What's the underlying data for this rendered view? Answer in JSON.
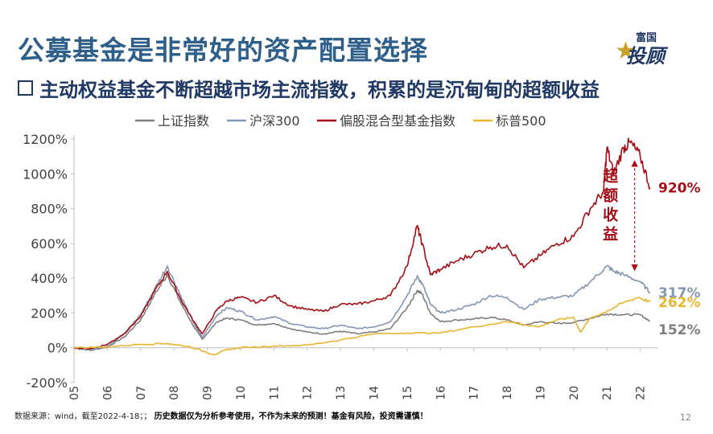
{
  "title": "公募基金是非常好的资产配置选择",
  "subtitle": "主动权益基金不断超越市场主流指数，积累的是沉甸甸的超额收益",
  "logo": {
    "top": "富国",
    "bottom": "投顾"
  },
  "footer": {
    "source": "数据来源：wind，截至2022-4-18；；",
    "disclaimer": "历史数据仅为分析参考使用，不作为未来的预测！基金有风险，投资需谨慎！"
  },
  "page_number": "12",
  "chart_data": {
    "type": "line",
    "title": "",
    "xlabel": "",
    "ylabel": "",
    "ylim": [
      -200,
      1200
    ],
    "xlim": [
      2005,
      2022.3
    ],
    "yticks": [
      -200,
      0,
      200,
      400,
      600,
      800,
      1000,
      1200
    ],
    "ytick_labels": [
      "-200%",
      "0%",
      "200%",
      "400%",
      "600%",
      "800%",
      "1000%",
      "1200%"
    ],
    "xticks": [
      2005,
      2006,
      2007,
      2008,
      2009,
      2010,
      2011,
      2012,
      2013,
      2014,
      2015,
      2016,
      2017,
      2018,
      2019,
      2020,
      2021,
      2022
    ],
    "xtick_labels": [
      "2005",
      "2006",
      "2007",
      "2008",
      "2009",
      "2010",
      "2011",
      "2012",
      "2013",
      "2014",
      "2015",
      "2016",
      "2017",
      "2018",
      "2019",
      "2020",
      "2021",
      "2022"
    ],
    "grid": false,
    "legend_position": "top",
    "series": [
      {
        "name": "上证指数",
        "color": "#7f7f7f",
        "x": [
          2005,
          2005.5,
          2006,
          2006.5,
          2007,
          2007.4,
          2007.8,
          2008.2,
          2008.6,
          2008.85,
          2009.3,
          2009.6,
          2010,
          2010.5,
          2011,
          2011.5,
          2012,
          2012.5,
          2013,
          2013.5,
          2014,
          2014.5,
          2015,
          2015.3,
          2015.45,
          2015.7,
          2016,
          2016.5,
          2017,
          2017.5,
          2018,
          2018.5,
          2019,
          2019.5,
          2020,
          2020.5,
          2021,
          2021.5,
          2022,
          2022.3
        ],
        "y": [
          0,
          -15,
          5,
          60,
          160,
          300,
          420,
          260,
          120,
          50,
          150,
          170,
          160,
          130,
          140,
          110,
          90,
          80,
          95,
          80,
          90,
          110,
          230,
          330,
          310,
          200,
          150,
          160,
          165,
          175,
          160,
          130,
          150,
          140,
          145,
          170,
          195,
          190,
          190,
          152
        ]
      },
      {
        "name": "沪深300",
        "color": "#8497b0",
        "x": [
          2005,
          2005.5,
          2006,
          2006.5,
          2007,
          2007.4,
          2007.8,
          2008.2,
          2008.6,
          2008.85,
          2009.3,
          2009.6,
          2010,
          2010.5,
          2011,
          2011.5,
          2012,
          2012.5,
          2013,
          2013.5,
          2014,
          2014.5,
          2015,
          2015.3,
          2015.45,
          2015.7,
          2016,
          2016.5,
          2017,
          2017.5,
          2018,
          2018.5,
          2019,
          2019.5,
          2020,
          2020.5,
          2021,
          2021.2,
          2021.5,
          2022,
          2022.3
        ],
        "y": [
          0,
          -10,
          10,
          80,
          190,
          330,
          470,
          300,
          140,
          60,
          190,
          230,
          210,
          160,
          180,
          140,
          120,
          110,
          130,
          110,
          120,
          150,
          300,
          410,
          370,
          250,
          200,
          220,
          250,
          300,
          290,
          220,
          280,
          290,
          300,
          380,
          470,
          440,
          420,
          380,
          317
        ]
      },
      {
        "name": "偏股混合型基金指数",
        "color": "#a50f15",
        "x": [
          2005,
          2005.5,
          2006,
          2006.5,
          2007,
          2007.4,
          2007.8,
          2008.2,
          2008.6,
          2008.85,
          2009.3,
          2009.6,
          2010,
          2010.5,
          2011,
          2011.5,
          2012,
          2012.5,
          2013,
          2013.5,
          2014,
          2014.5,
          2015,
          2015.3,
          2015.45,
          2015.7,
          2016,
          2016.5,
          2017,
          2017.5,
          2018,
          2018.5,
          2019,
          2019.5,
          2020,
          2020.5,
          2020.9,
          2021,
          2021.2,
          2021.5,
          2021.7,
          2022,
          2022.3
        ],
        "y": [
          0,
          -5,
          20,
          80,
          180,
          320,
          440,
          280,
          150,
          80,
          220,
          270,
          290,
          260,
          300,
          240,
          220,
          210,
          250,
          250,
          270,
          300,
          470,
          700,
          600,
          420,
          450,
          500,
          540,
          580,
          590,
          460,
          530,
          600,
          640,
          800,
          900,
          1150,
          1000,
          1150,
          1180,
          1100,
          920
        ]
      },
      {
        "name": "标普500",
        "color": "#e8b52e",
        "x": [
          2005,
          2006,
          2007,
          2007.8,
          2008.5,
          2009.2,
          2009.6,
          2010,
          2011,
          2012,
          2013,
          2014,
          2015,
          2016,
          2017,
          2018,
          2018.95,
          2019.5,
          2020,
          2020.2,
          2020.5,
          2021,
          2021.5,
          2021.95,
          2022.3
        ],
        "y": [
          0,
          5,
          20,
          25,
          5,
          -40,
          -10,
          0,
          10,
          15,
          45,
          80,
          85,
          85,
          120,
          150,
          120,
          160,
          175,
          90,
          170,
          210,
          260,
          290,
          262
        ]
      }
    ],
    "end_labels": [
      {
        "series": "偏股混合型基金指数",
        "text": "920%",
        "color": "#a50f15"
      },
      {
        "series": "沪深300",
        "text": "317%",
        "color": "#8497b0"
      },
      {
        "series": "标普500",
        "text": "262%",
        "color": "#e8b52e"
      },
      {
        "series": "上证指数",
        "text": "152%",
        "color": "#7f7f7f"
      }
    ],
    "annotation": {
      "text": "超额收益",
      "color": "#a50f15",
      "x": 2021.3,
      "y_from": 1060,
      "y_to": 460
    }
  }
}
